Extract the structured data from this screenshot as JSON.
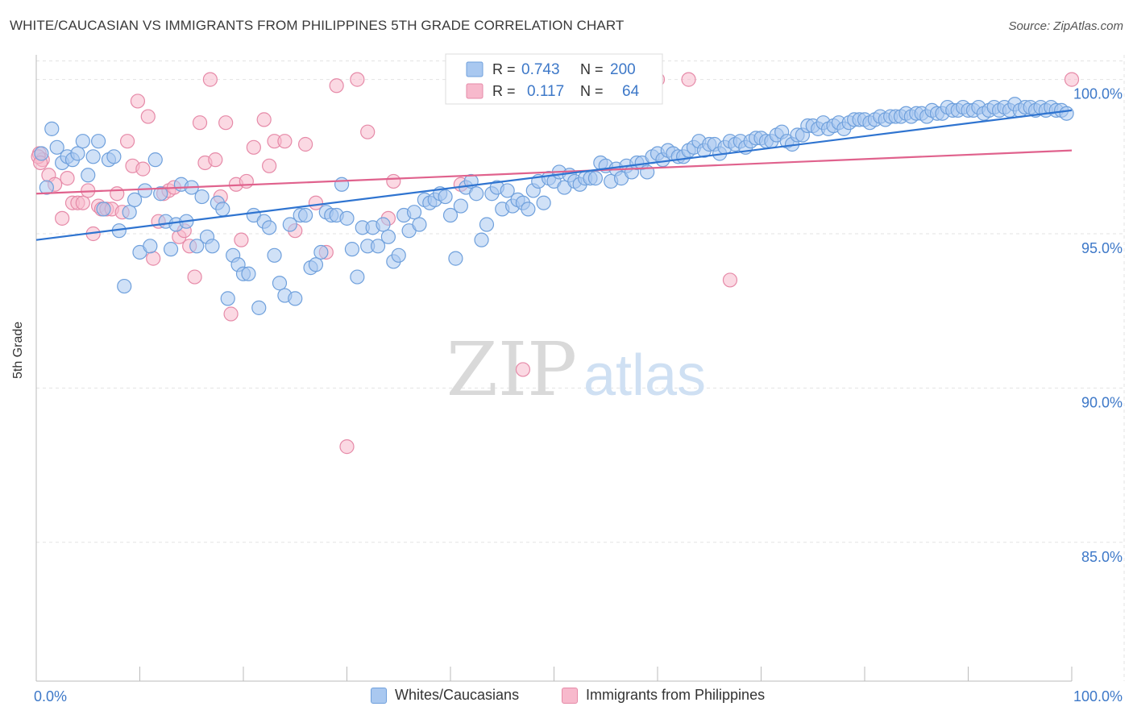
{
  "title": "WHITE/CAUCASIAN VS IMMIGRANTS FROM PHILIPPINES 5TH GRADE CORRELATION CHART",
  "source": "Source: ZipAtlas.com",
  "watermark": {
    "zip": "ZIP",
    "atlas": "atlas"
  },
  "colors": {
    "blue_fill": "#a9c8f0",
    "blue_stroke": "#6fa0dc",
    "blue_line": "#2f74d0",
    "pink_fill": "#f7b9cc",
    "pink_stroke": "#e68aa8",
    "pink_line": "#e0628d",
    "axis_text": "#3d78c8",
    "grid": "#e3e3e3"
  },
  "legend_top": {
    "rows": [
      {
        "r_label": "R =",
        "r_value": "0.743",
        "n_label": "N =",
        "n_value": "200"
      },
      {
        "r_label": "R =",
        "r_value": "0.117",
        "n_label": "N =",
        "n_value": "64"
      }
    ]
  },
  "legend_bottom": [
    "Whites/Caucasians",
    "Immigrants from Philippines"
  ],
  "chart_data": {
    "type": "scatter",
    "title": "WHITE/CAUCASIAN VS IMMIGRANTS FROM PHILIPPINES 5TH GRADE CORRELATION CHART",
    "xlabel": "",
    "ylabel": "5th Grade",
    "xlim": [
      0,
      100
    ],
    "ylim": [
      80.5,
      100.8
    ],
    "x_tick_labels": [
      "0.0%",
      "100.0%"
    ],
    "y_ticks": [
      85,
      90,
      95,
      100
    ],
    "y_tick_labels": [
      "85.0%",
      "90.0%",
      "95.0%",
      "100.0%"
    ],
    "grid": true,
    "legend_position": "top-center",
    "series": [
      {
        "name": "Whites/Caucasians",
        "r": 0.743,
        "n": 200,
        "trend": {
          "x": [
            0,
            100
          ],
          "y": [
            94.8,
            99.0
          ]
        },
        "points": [
          [
            0.5,
            97.6
          ],
          [
            1,
            96.5
          ],
          [
            1.5,
            98.4
          ],
          [
            2,
            97.8
          ],
          [
            2.5,
            97.3
          ],
          [
            3,
            97.5
          ],
          [
            3.5,
            97.4
          ],
          [
            4,
            97.6
          ],
          [
            4.5,
            98.0
          ],
          [
            5,
            96.9
          ],
          [
            5.5,
            97.5
          ],
          [
            6,
            98.0
          ],
          [
            6.5,
            95.8
          ],
          [
            7,
            97.4
          ],
          [
            7.5,
            97.5
          ],
          [
            8,
            95.1
          ],
          [
            8.5,
            93.3
          ],
          [
            9,
            95.7
          ],
          [
            9.5,
            96.1
          ],
          [
            10,
            94.4
          ],
          [
            10.5,
            96.4
          ],
          [
            11,
            94.6
          ],
          [
            11.5,
            97.4
          ],
          [
            12,
            96.3
          ],
          [
            12.5,
            95.4
          ],
          [
            13,
            94.5
          ],
          [
            13.5,
            95.3
          ],
          [
            14,
            96.6
          ],
          [
            14.5,
            95.4
          ],
          [
            15,
            96.5
          ],
          [
            15.5,
            94.6
          ],
          [
            16,
            96.2
          ],
          [
            16.5,
            94.9
          ],
          [
            17,
            94.6
          ],
          [
            17.5,
            96.0
          ],
          [
            18,
            95.8
          ],
          [
            18.5,
            92.9
          ],
          [
            19,
            94.3
          ],
          [
            19.5,
            94.0
          ],
          [
            20,
            93.7
          ],
          [
            20.5,
            93.7
          ],
          [
            21,
            95.6
          ],
          [
            21.5,
            92.6
          ],
          [
            22,
            95.4
          ],
          [
            22.5,
            95.2
          ],
          [
            23,
            94.3
          ],
          [
            23.5,
            93.4
          ],
          [
            24,
            93.0
          ],
          [
            24.5,
            95.3
          ],
          [
            25,
            92.9
          ],
          [
            25.5,
            95.6
          ],
          [
            26,
            95.6
          ],
          [
            26.5,
            93.9
          ],
          [
            27,
            94.0
          ],
          [
            27.5,
            94.4
          ],
          [
            28,
            95.7
          ],
          [
            28.5,
            95.6
          ],
          [
            29,
            95.6
          ],
          [
            29.5,
            96.6
          ],
          [
            30,
            95.5
          ],
          [
            30.5,
            94.5
          ],
          [
            31,
            93.6
          ],
          [
            31.5,
            95.2
          ],
          [
            32,
            94.6
          ],
          [
            32.5,
            95.2
          ],
          [
            33,
            94.6
          ],
          [
            33.5,
            95.3
          ],
          [
            34,
            94.9
          ],
          [
            34.5,
            94.1
          ],
          [
            35,
            94.3
          ],
          [
            35.5,
            95.6
          ],
          [
            36,
            95.1
          ],
          [
            36.5,
            95.7
          ],
          [
            37,
            95.3
          ],
          [
            37.5,
            96.1
          ],
          [
            38,
            96.0
          ],
          [
            38.5,
            96.1
          ],
          [
            39,
            96.3
          ],
          [
            39.5,
            96.2
          ],
          [
            40,
            95.6
          ],
          [
            40.5,
            94.2
          ],
          [
            41,
            95.9
          ],
          [
            41.5,
            96.5
          ],
          [
            42,
            96.7
          ],
          [
            42.5,
            96.3
          ],
          [
            43,
            94.8
          ],
          [
            43.5,
            95.3
          ],
          [
            44,
            96.3
          ],
          [
            44.5,
            96.5
          ],
          [
            45,
            95.8
          ],
          [
            45.5,
            96.4
          ],
          [
            46,
            95.9
          ],
          [
            46.5,
            96.1
          ],
          [
            47,
            96.0
          ],
          [
            47.5,
            95.8
          ],
          [
            48,
            96.4
          ],
          [
            48.5,
            96.7
          ],
          [
            49,
            96.0
          ],
          [
            49.5,
            96.8
          ],
          [
            50,
            96.7
          ],
          [
            50.5,
            97.0
          ],
          [
            51,
            96.5
          ],
          [
            51.5,
            96.9
          ],
          [
            52,
            96.7
          ],
          [
            52.5,
            96.6
          ],
          [
            53,
            96.8
          ],
          [
            53.5,
            96.8
          ],
          [
            54,
            96.8
          ],
          [
            54.5,
            97.3
          ],
          [
            55,
            97.2
          ],
          [
            55.5,
            96.7
          ],
          [
            56,
            97.1
          ],
          [
            56.5,
            96.8
          ],
          [
            57,
            97.2
          ],
          [
            57.5,
            97.0
          ],
          [
            58,
            97.3
          ],
          [
            58.5,
            97.3
          ],
          [
            59,
            97.0
          ],
          [
            59.5,
            97.5
          ],
          [
            60,
            97.6
          ],
          [
            60.5,
            97.4
          ],
          [
            61,
            97.7
          ],
          [
            61.5,
            97.6
          ],
          [
            62,
            97.5
          ],
          [
            62.5,
            97.5
          ],
          [
            63,
            97.7
          ],
          [
            63.5,
            97.8
          ],
          [
            64,
            98.0
          ],
          [
            64.5,
            97.7
          ],
          [
            65,
            97.9
          ],
          [
            65.5,
            97.9
          ],
          [
            66,
            97.6
          ],
          [
            66.5,
            97.8
          ],
          [
            67,
            98.0
          ],
          [
            67.5,
            97.9
          ],
          [
            68,
            98.0
          ],
          [
            68.5,
            97.8
          ],
          [
            69,
            98.0
          ],
          [
            69.5,
            98.1
          ],
          [
            70,
            98.1
          ],
          [
            70.5,
            98.0
          ],
          [
            71,
            98.0
          ],
          [
            71.5,
            98.2
          ],
          [
            72,
            98.3
          ],
          [
            72.5,
            98.0
          ],
          [
            73,
            97.9
          ],
          [
            73.5,
            98.2
          ],
          [
            74,
            98.2
          ],
          [
            74.5,
            98.5
          ],
          [
            75,
            98.5
          ],
          [
            75.5,
            98.4
          ],
          [
            76,
            98.6
          ],
          [
            76.5,
            98.4
          ],
          [
            77,
            98.5
          ],
          [
            77.5,
            98.6
          ],
          [
            78,
            98.4
          ],
          [
            78.5,
            98.6
          ],
          [
            79,
            98.7
          ],
          [
            79.5,
            98.7
          ],
          [
            80,
            98.7
          ],
          [
            80.5,
            98.6
          ],
          [
            81,
            98.7
          ],
          [
            81.5,
            98.8
          ],
          [
            82,
            98.7
          ],
          [
            82.5,
            98.8
          ],
          [
            83,
            98.8
          ],
          [
            83.5,
            98.8
          ],
          [
            84,
            98.9
          ],
          [
            84.5,
            98.8
          ],
          [
            85,
            98.9
          ],
          [
            85.5,
            98.9
          ],
          [
            86,
            98.8
          ],
          [
            86.5,
            99.0
          ],
          [
            87,
            98.9
          ],
          [
            87.5,
            98.9
          ],
          [
            88,
            99.1
          ],
          [
            88.5,
            99.0
          ],
          [
            89,
            99.0
          ],
          [
            89.5,
            99.1
          ],
          [
            90,
            99.0
          ],
          [
            90.5,
            99.0
          ],
          [
            91,
            99.1
          ],
          [
            91.5,
            98.9
          ],
          [
            92,
            99.0
          ],
          [
            92.5,
            99.1
          ],
          [
            93,
            99.0
          ],
          [
            93.5,
            99.1
          ],
          [
            94,
            99.0
          ],
          [
            94.5,
            99.2
          ],
          [
            95,
            99.0
          ],
          [
            95.5,
            99.1
          ],
          [
            96,
            99.1
          ],
          [
            96.5,
            99.0
          ],
          [
            97,
            99.1
          ],
          [
            97.5,
            99.0
          ],
          [
            98,
            99.1
          ],
          [
            98.5,
            99.0
          ],
          [
            99,
            99.0
          ],
          [
            99.5,
            98.9
          ]
        ]
      },
      {
        "name": "Immigrants from Philippines",
        "r": 0.117,
        "n": 64,
        "trend": {
          "x": [
            0,
            100
          ],
          "y": [
            96.3,
            97.7
          ]
        },
        "points": [
          [
            0.3,
            97.6
          ],
          [
            0.6,
            97.4
          ],
          [
            1.2,
            96.9
          ],
          [
            1.8,
            96.6
          ],
          [
            2.5,
            95.5
          ],
          [
            3.0,
            96.8
          ],
          [
            3.5,
            96.0
          ],
          [
            4.0,
            96.0
          ],
          [
            4.5,
            96.0
          ],
          [
            5.0,
            96.4
          ],
          [
            5.5,
            95.0
          ],
          [
            6.0,
            95.9
          ],
          [
            6.3,
            95.8
          ],
          [
            6.8,
            95.8
          ],
          [
            7.3,
            95.8
          ],
          [
            7.8,
            96.3
          ],
          [
            8.3,
            95.7
          ],
          [
            8.8,
            98.0
          ],
          [
            9.3,
            97.2
          ],
          [
            9.8,
            99.3
          ],
          [
            10.3,
            97.1
          ],
          [
            10.8,
            98.8
          ],
          [
            11.3,
            94.2
          ],
          [
            11.8,
            95.4
          ],
          [
            12.3,
            96.3
          ],
          [
            12.8,
            96.4
          ],
          [
            13.3,
            96.5
          ],
          [
            13.8,
            94.9
          ],
          [
            14.3,
            95.1
          ],
          [
            14.8,
            94.6
          ],
          [
            15.3,
            93.6
          ],
          [
            15.8,
            98.6
          ],
          [
            16.3,
            97.3
          ],
          [
            16.8,
            100.0
          ],
          [
            17.3,
            97.4
          ],
          [
            17.8,
            96.2
          ],
          [
            18.3,
            98.6
          ],
          [
            18.8,
            92.4
          ],
          [
            19.3,
            96.6
          ],
          [
            19.8,
            94.8
          ],
          [
            20.3,
            96.7
          ],
          [
            21.0,
            97.8
          ],
          [
            22.0,
            98.7
          ],
          [
            22.5,
            97.2
          ],
          [
            23.0,
            98.0
          ],
          [
            24.0,
            98.0
          ],
          [
            25.0,
            95.1
          ],
          [
            26.0,
            97.9
          ],
          [
            27.0,
            96.0
          ],
          [
            28.0,
            94.4
          ],
          [
            29.0,
            99.8
          ],
          [
            30.0,
            88.1
          ],
          [
            31.0,
            100.0
          ],
          [
            32.0,
            98.3
          ],
          [
            34.0,
            95.5
          ],
          [
            34.5,
            96.7
          ],
          [
            41.0,
            96.6
          ],
          [
            47.0,
            90.6
          ],
          [
            60.0,
            100.0
          ],
          [
            63.0,
            100.0
          ],
          [
            67.0,
            93.5
          ],
          [
            100,
            100.0
          ],
          [
            0.2,
            97.5
          ],
          [
            0.4,
            97.3
          ]
        ]
      }
    ]
  }
}
